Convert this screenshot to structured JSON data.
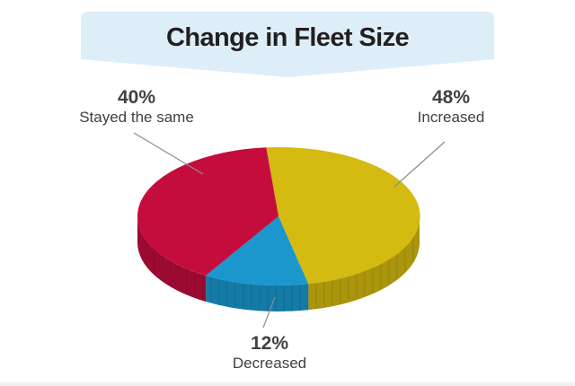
{
  "title": {
    "text": "Change in Fleet Size"
  },
  "banner": {
    "bg_color": "#ddeef9",
    "text_color": "#231f20"
  },
  "chart_data": {
    "type": "pie",
    "title": "Change in Fleet Size",
    "unit": "percent",
    "style": "3d",
    "start_angle_deg": 95,
    "direction": "clockwise",
    "legend": "none",
    "labels_style": "external callouts with leader lines",
    "leader_line_color": "#8c8c8c",
    "label_text_color": "#414042",
    "slices": [
      {
        "label": "Increased",
        "value": 48,
        "display_pct": "48%",
        "color": "#d4ba11",
        "side_color": "#aa950c"
      },
      {
        "label": "Decreased",
        "value": 12,
        "display_pct": "12%",
        "color": "#1b97cd",
        "side_color": "#147aa6"
      },
      {
        "label": "Stayed the same",
        "value": 40,
        "display_pct": "40%",
        "color": "#c50d3d",
        "side_color": "#9d0a31"
      }
    ]
  }
}
